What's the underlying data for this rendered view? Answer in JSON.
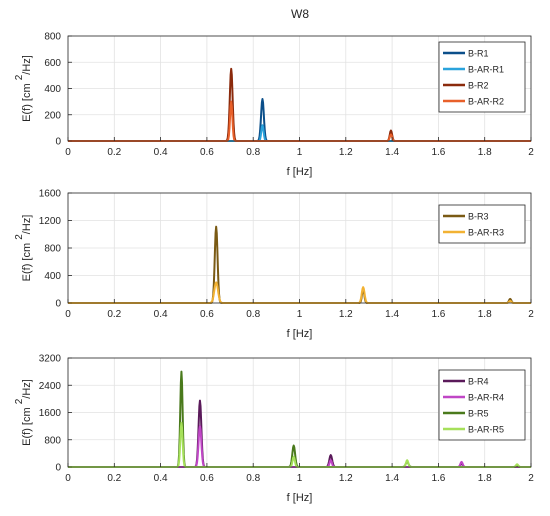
{
  "figure_title": "W8",
  "chart_data": [
    {
      "type": "line",
      "xlabel": "f [Hz]",
      "ylabel": "E(f) [cm",
      "ylabel_super": "2",
      "ylabel_unit": "/Hz]",
      "xlim": [
        0,
        2
      ],
      "ylim": [
        0,
        800
      ],
      "xticks": [
        0,
        0.2,
        0.4,
        0.6,
        0.8,
        1,
        1.2,
        1.4,
        1.6,
        1.8,
        2
      ],
      "xtick_labels": [
        "0",
        "0.2",
        "0.4",
        "0.6",
        "0.8",
        "1",
        "1.2",
        "1.4",
        "1.6",
        "1.8",
        "2"
      ],
      "yticks": [
        0,
        200,
        400,
        600,
        800
      ],
      "ytick_labels": [
        "0",
        "200",
        "400",
        "600",
        "800"
      ],
      "grid": true,
      "legend_position": "top-right",
      "series": [
        {
          "name": "B-R1",
          "color": "#0b4f8a",
          "peaks": [
            {
              "f": 0.84,
              "e": 320,
              "w": 0.006
            }
          ]
        },
        {
          "name": "B-AR-R1",
          "color": "#2aa3dc",
          "peaks": [
            {
              "f": 0.84,
              "e": 120,
              "w": 0.005
            }
          ]
        },
        {
          "name": "B-R2",
          "color": "#8b2a0c",
          "peaks": [
            {
              "f": 0.705,
              "e": 550,
              "w": 0.006
            },
            {
              "f": 1.395,
              "e": 80,
              "w": 0.005
            }
          ]
        },
        {
          "name": "B-AR-R2",
          "color": "#e8602a",
          "peaks": [
            {
              "f": 0.705,
              "e": 300,
              "w": 0.005
            },
            {
              "f": 1.395,
              "e": 50,
              "w": 0.005
            }
          ]
        }
      ]
    },
    {
      "type": "line",
      "xlabel": "f [Hz]",
      "ylabel": "E(f) [cm",
      "ylabel_super": "2",
      "ylabel_unit": "/Hz]",
      "xlim": [
        0,
        2
      ],
      "ylim": [
        0,
        1600
      ],
      "xticks": [
        0,
        0.2,
        0.4,
        0.6,
        0.8,
        1,
        1.2,
        1.4,
        1.6,
        1.8,
        2
      ],
      "xtick_labels": [
        "0",
        "0.2",
        "0.4",
        "0.6",
        "0.8",
        "1",
        "1.2",
        "1.4",
        "1.6",
        "1.8",
        "2"
      ],
      "yticks": [
        0,
        400,
        800,
        1200,
        1600
      ],
      "ytick_labels": [
        "0",
        "400",
        "800",
        "1200",
        "1600"
      ],
      "grid": true,
      "legend_position": "top-right",
      "series": [
        {
          "name": "B-R3",
          "color": "#7a5a14",
          "peaks": [
            {
              "f": 0.64,
              "e": 1110,
              "w": 0.006
            },
            {
              "f": 1.275,
              "e": 200,
              "w": 0.005
            },
            {
              "f": 1.91,
              "e": 60,
              "w": 0.005
            }
          ]
        },
        {
          "name": "B-AR-R3",
          "color": "#f2b233",
          "peaks": [
            {
              "f": 0.64,
              "e": 300,
              "w": 0.008
            },
            {
              "f": 1.275,
              "e": 230,
              "w": 0.006
            },
            {
              "f": 1.91,
              "e": 30,
              "w": 0.005
            }
          ]
        }
      ]
    },
    {
      "type": "line",
      "xlabel": "f [Hz]",
      "ylabel": "E(f) [cm",
      "ylabel_super": "2",
      "ylabel_unit": "/Hz]",
      "xlim": [
        0,
        2
      ],
      "ylim": [
        0,
        3200
      ],
      "xticks": [
        0,
        0.2,
        0.4,
        0.6,
        0.8,
        1,
        1.2,
        1.4,
        1.6,
        1.8,
        2
      ],
      "xtick_labels": [
        "0",
        "0.2",
        "0.4",
        "0.6",
        "0.8",
        "1",
        "1.2",
        "1.4",
        "1.6",
        "1.8",
        "2"
      ],
      "yticks": [
        0,
        800,
        1600,
        2400,
        3200
      ],
      "ytick_labels": [
        "0",
        "800",
        "1600",
        "2400",
        "3200"
      ],
      "grid": true,
      "legend_position": "top-right",
      "series": [
        {
          "name": "B-R4",
          "color": "#5a1a5a",
          "peaks": [
            {
              "f": 0.57,
              "e": 1950,
              "w": 0.006
            },
            {
              "f": 1.135,
              "e": 350,
              "w": 0.006
            },
            {
              "f": 1.7,
              "e": 100,
              "w": 0.005
            }
          ]
        },
        {
          "name": "B-AR-R4",
          "color": "#c046c6",
          "peaks": [
            {
              "f": 0.57,
              "e": 1200,
              "w": 0.006
            },
            {
              "f": 1.135,
              "e": 200,
              "w": 0.005
            },
            {
              "f": 1.7,
              "e": 150,
              "w": 0.005
            }
          ]
        },
        {
          "name": "B-R5",
          "color": "#4a7a1c",
          "peaks": [
            {
              "f": 0.49,
              "e": 2800,
              "w": 0.005
            },
            {
              "f": 0.975,
              "e": 630,
              "w": 0.006
            },
            {
              "f": 1.465,
              "e": 150,
              "w": 0.006
            },
            {
              "f": 1.94,
              "e": 40,
              "w": 0.005
            }
          ]
        },
        {
          "name": "B-AR-R5",
          "color": "#a6e05a",
          "peaks": [
            {
              "f": 0.49,
              "e": 1300,
              "w": 0.005
            },
            {
              "f": 0.975,
              "e": 300,
              "w": 0.005
            },
            {
              "f": 1.465,
              "e": 200,
              "w": 0.005
            },
            {
              "f": 1.94,
              "e": 80,
              "w": 0.005
            }
          ]
        }
      ]
    }
  ]
}
